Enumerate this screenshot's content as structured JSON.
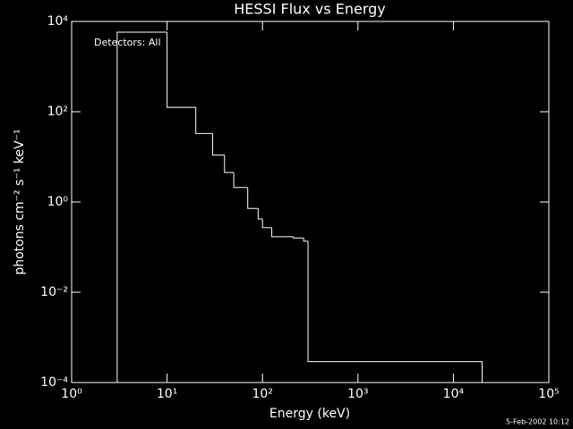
{
  "chart_data": {
    "type": "histogram",
    "title": "HESSI Flux vs Energy",
    "x_label": "Energy (keV)",
    "y_label": "photons cm⁻² s⁻¹ keV⁻¹",
    "annotation": "Detectors: All",
    "timestamp": "5-Feb-2002 10:12",
    "x_log": true,
    "y_log": true,
    "color": "#ffffff",
    "bins": [
      3,
      10,
      20,
      30,
      40,
      50,
      70,
      90,
      100,
      125,
      210,
      270,
      300,
      20000
    ],
    "values": [
      5800,
      125,
      33,
      11,
      4.5,
      2.1,
      0.72,
      0.42,
      0.27,
      0.17,
      0.16,
      0.135,
      0.00029
    ],
    "xlim": [
      1,
      100000
    ],
    "xticks": [
      {
        "value": 1,
        "label": "10⁰"
      },
      {
        "value": 10,
        "label": "10¹"
      },
      {
        "value": 100,
        "label": "10²"
      },
      {
        "value": 1000,
        "label": "10³"
      },
      {
        "value": 10000,
        "label": "10⁴"
      },
      {
        "value": 100000,
        "label": "10⁵"
      }
    ],
    "ylim": [
      0.0001,
      10000
    ],
    "yticks": [
      {
        "value": 0.0001,
        "label": "10⁻⁴"
      },
      {
        "value": 0.01,
        "label": "10⁻²"
      },
      {
        "value": 1,
        "label": "10⁰"
      },
      {
        "value": 100,
        "label": "10²"
      },
      {
        "value": 10000,
        "label": "10⁴"
      }
    ]
  }
}
